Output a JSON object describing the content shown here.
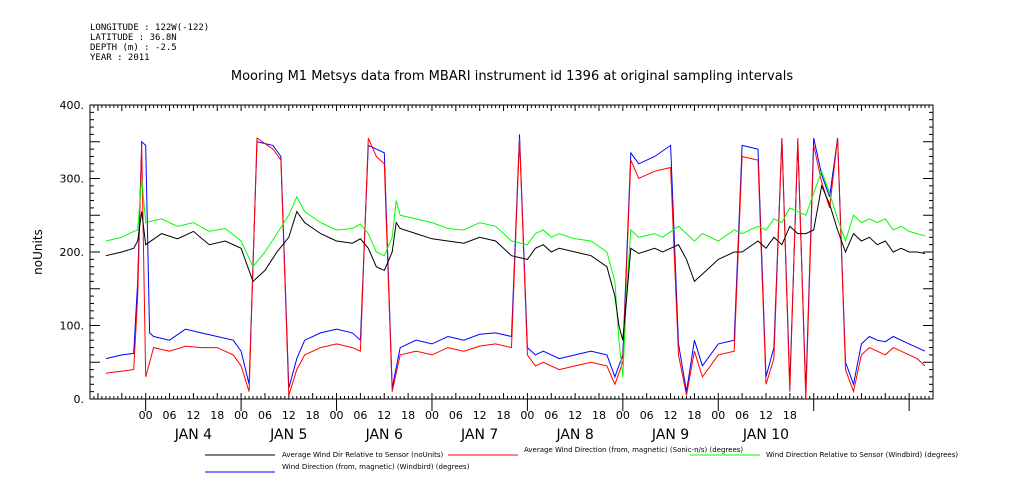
{
  "metadata": {
    "longitude": "LONGITUDE : 122W(-122)",
    "latitude": "LATITUDE : 36.8N",
    "depth": "DEPTH (m) : -2.5",
    "year": "YEAR : 2011"
  },
  "chart_data": {
    "type": "line",
    "title": "Mooring M1 Metsys data from MBARI instrument id 1396 at original sampling intervals",
    "ylabel": "noUnits",
    "ylim": [
      0,
      400
    ],
    "yticks": [
      "0.",
      "100.",
      "200.",
      "300.",
      "400."
    ],
    "xlim_hours": [
      -14,
      198
    ],
    "hour_ticks": [
      "00",
      "06",
      "12",
      "18",
      "00",
      "06",
      "12",
      "18",
      "00",
      "06",
      "12",
      "18",
      "00",
      "06",
      "12",
      "18",
      "00",
      "06",
      "12",
      "18",
      "00",
      "06",
      "12",
      "18",
      "00",
      "06",
      "12",
      "18"
    ],
    "day_labels": [
      "JAN  4",
      "JAN  5",
      "JAN  6",
      "JAN  7",
      "JAN  8",
      "JAN  9",
      "JAN 10"
    ],
    "series": [
      {
        "name": "Average Wind Dir Relative to Sensor (noUnits)",
        "color": "#000000",
        "points": [
          [
            -10,
            195
          ],
          [
            -6,
            200
          ],
          [
            -3,
            205
          ],
          [
            -2,
            215
          ],
          [
            -1,
            255
          ],
          [
            0,
            210
          ],
          [
            4,
            225
          ],
          [
            8,
            218
          ],
          [
            12,
            228
          ],
          [
            16,
            210
          ],
          [
            20,
            215
          ],
          [
            24,
            205
          ],
          [
            27,
            160
          ],
          [
            30,
            175
          ],
          [
            33,
            200
          ],
          [
            36,
            220
          ],
          [
            38,
            255
          ],
          [
            40,
            240
          ],
          [
            44,
            225
          ],
          [
            48,
            215
          ],
          [
            52,
            212
          ],
          [
            54,
            218
          ],
          [
            56,
            205
          ],
          [
            58,
            180
          ],
          [
            60,
            175
          ],
          [
            62,
            200
          ],
          [
            63,
            240
          ],
          [
            64,
            232
          ],
          [
            68,
            225
          ],
          [
            72,
            218
          ],
          [
            76,
            215
          ],
          [
            80,
            212
          ],
          [
            84,
            220
          ],
          [
            88,
            215
          ],
          [
            90,
            205
          ],
          [
            92,
            195
          ],
          [
            96,
            190
          ],
          [
            98,
            205
          ],
          [
            100,
            210
          ],
          [
            102,
            200
          ],
          [
            104,
            205
          ],
          [
            108,
            200
          ],
          [
            112,
            195
          ],
          [
            116,
            180
          ],
          [
            118,
            140
          ],
          [
            119,
            100
          ],
          [
            120,
            80
          ],
          [
            121,
            140
          ],
          [
            122,
            205
          ],
          [
            124,
            198
          ],
          [
            128,
            205
          ],
          [
            130,
            200
          ],
          [
            134,
            210
          ],
          [
            136,
            190
          ],
          [
            138,
            160
          ],
          [
            140,
            170
          ],
          [
            144,
            190
          ],
          [
            148,
            200
          ],
          [
            150,
            200
          ],
          [
            154,
            215
          ],
          [
            156,
            205
          ],
          [
            158,
            220
          ],
          [
            160,
            210
          ],
          [
            162,
            235
          ],
          [
            164,
            225
          ],
          [
            166,
            225
          ],
          [
            168,
            230
          ],
          [
            170,
            290
          ],
          [
            172,
            265
          ],
          [
            174,
            230
          ],
          [
            176,
            200
          ],
          [
            178,
            225
          ],
          [
            180,
            215
          ],
          [
            182,
            220
          ],
          [
            184,
            210
          ],
          [
            186,
            215
          ],
          [
            188,
            200
          ],
          [
            190,
            205
          ],
          [
            192,
            200
          ],
          [
            194,
            200
          ],
          [
            196,
            198
          ]
        ]
      },
      {
        "name": "Average Wind Direction (from, magnetic) (Sonic-n/s) (degrees)",
        "color": "#ff0000",
        "points": [
          [
            -10,
            35
          ],
          [
            -6,
            38
          ],
          [
            -3,
            40
          ],
          [
            -2,
            140
          ],
          [
            -1,
            345
          ],
          [
            0,
            30
          ],
          [
            2,
            70
          ],
          [
            6,
            65
          ],
          [
            10,
            72
          ],
          [
            14,
            70
          ],
          [
            18,
            70
          ],
          [
            22,
            60
          ],
          [
            24,
            45
          ],
          [
            26,
            10
          ],
          [
            28,
            355
          ],
          [
            32,
            340
          ],
          [
            34,
            325
          ],
          [
            36,
            5
          ],
          [
            38,
            40
          ],
          [
            40,
            60
          ],
          [
            44,
            70
          ],
          [
            48,
            75
          ],
          [
            52,
            70
          ],
          [
            54,
            65
          ],
          [
            56,
            355
          ],
          [
            58,
            330
          ],
          [
            60,
            320
          ],
          [
            62,
            10
          ],
          [
            64,
            60
          ],
          [
            68,
            65
          ],
          [
            72,
            60
          ],
          [
            76,
            70
          ],
          [
            80,
            65
          ],
          [
            84,
            72
          ],
          [
            88,
            75
          ],
          [
            92,
            70
          ],
          [
            94,
            355
          ],
          [
            96,
            60
          ],
          [
            98,
            45
          ],
          [
            100,
            50
          ],
          [
            104,
            40
          ],
          [
            108,
            45
          ],
          [
            112,
            50
          ],
          [
            116,
            45
          ],
          [
            118,
            20
          ],
          [
            120,
            50
          ],
          [
            122,
            325
          ],
          [
            124,
            300
          ],
          [
            128,
            310
          ],
          [
            132,
            315
          ],
          [
            134,
            60
          ],
          [
            136,
            5
          ],
          [
            138,
            65
          ],
          [
            140,
            30
          ],
          [
            144,
            60
          ],
          [
            148,
            65
          ],
          [
            150,
            330
          ],
          [
            154,
            325
          ],
          [
            156,
            20
          ],
          [
            158,
            55
          ],
          [
            160,
            355
          ],
          [
            162,
            10
          ],
          [
            164,
            355
          ],
          [
            166,
            0
          ],
          [
            168,
            345
          ],
          [
            170,
            295
          ],
          [
            172,
            260
          ],
          [
            174,
            355
          ],
          [
            176,
            40
          ],
          [
            178,
            10
          ],
          [
            180,
            60
          ],
          [
            182,
            70
          ],
          [
            184,
            65
          ],
          [
            186,
            60
          ],
          [
            188,
            70
          ],
          [
            190,
            65
          ],
          [
            192,
            60
          ],
          [
            194,
            55
          ],
          [
            196,
            45
          ]
        ]
      },
      {
        "name": "Wind Direction Relative to Sensor (Windbird) (degrees)",
        "color": "#00ff00",
        "points": [
          [
            -10,
            215
          ],
          [
            -6,
            220
          ],
          [
            -3,
            228
          ],
          [
            -2,
            230
          ],
          [
            -1,
            300
          ],
          [
            0,
            240
          ],
          [
            4,
            245
          ],
          [
            8,
            235
          ],
          [
            12,
            240
          ],
          [
            16,
            228
          ],
          [
            20,
            232
          ],
          [
            24,
            215
          ],
          [
            27,
            180
          ],
          [
            30,
            200
          ],
          [
            33,
            225
          ],
          [
            36,
            250
          ],
          [
            38,
            275
          ],
          [
            40,
            255
          ],
          [
            44,
            240
          ],
          [
            48,
            230
          ],
          [
            52,
            232
          ],
          [
            54,
            238
          ],
          [
            56,
            225
          ],
          [
            58,
            200
          ],
          [
            60,
            195
          ],
          [
            62,
            220
          ],
          [
            63,
            270
          ],
          [
            64,
            250
          ],
          [
            68,
            245
          ],
          [
            72,
            240
          ],
          [
            76,
            232
          ],
          [
            80,
            230
          ],
          [
            84,
            240
          ],
          [
            88,
            235
          ],
          [
            90,
            225
          ],
          [
            92,
            215
          ],
          [
            96,
            210
          ],
          [
            98,
            225
          ],
          [
            100,
            230
          ],
          [
            102,
            220
          ],
          [
            104,
            225
          ],
          [
            108,
            218
          ],
          [
            112,
            215
          ],
          [
            116,
            200
          ],
          [
            118,
            160
          ],
          [
            119,
            80
          ],
          [
            120,
            30
          ],
          [
            121,
            150
          ],
          [
            122,
            230
          ],
          [
            124,
            220
          ],
          [
            128,
            225
          ],
          [
            130,
            220
          ],
          [
            134,
            235
          ],
          [
            136,
            225
          ],
          [
            138,
            215
          ],
          [
            140,
            225
          ],
          [
            144,
            215
          ],
          [
            148,
            230
          ],
          [
            150,
            225
          ],
          [
            154,
            235
          ],
          [
            156,
            230
          ],
          [
            158,
            245
          ],
          [
            160,
            240
          ],
          [
            162,
            260
          ],
          [
            164,
            255
          ],
          [
            166,
            250
          ],
          [
            168,
            280
          ],
          [
            170,
            310
          ],
          [
            172,
            280
          ],
          [
            174,
            245
          ],
          [
            176,
            215
          ],
          [
            178,
            250
          ],
          [
            180,
            240
          ],
          [
            182,
            245
          ],
          [
            184,
            240
          ],
          [
            186,
            245
          ],
          [
            188,
            230
          ],
          [
            190,
            235
          ],
          [
            192,
            228
          ],
          [
            194,
            225
          ],
          [
            196,
            222
          ]
        ]
      },
      {
        "name": "Wind Direction (from, magnetic) (Windbird) (degrees)",
        "color": "#0000ff",
        "points": [
          [
            -10,
            55
          ],
          [
            -6,
            60
          ],
          [
            -3,
            62
          ],
          [
            -2,
            160
          ],
          [
            -1,
            350
          ],
          [
            0,
            345
          ],
          [
            1,
            90
          ],
          [
            2,
            85
          ],
          [
            6,
            80
          ],
          [
            10,
            95
          ],
          [
            14,
            90
          ],
          [
            18,
            85
          ],
          [
            22,
            80
          ],
          [
            24,
            65
          ],
          [
            26,
            20
          ],
          [
            28,
            350
          ],
          [
            32,
            345
          ],
          [
            34,
            330
          ],
          [
            36,
            15
          ],
          [
            38,
            55
          ],
          [
            40,
            80
          ],
          [
            44,
            90
          ],
          [
            48,
            95
          ],
          [
            52,
            90
          ],
          [
            54,
            80
          ],
          [
            56,
            345
          ],
          [
            58,
            340
          ],
          [
            60,
            335
          ],
          [
            62,
            15
          ],
          [
            64,
            70
          ],
          [
            68,
            80
          ],
          [
            72,
            75
          ],
          [
            76,
            85
          ],
          [
            80,
            80
          ],
          [
            84,
            88
          ],
          [
            88,
            90
          ],
          [
            92,
            85
          ],
          [
            94,
            360
          ],
          [
            96,
            70
          ],
          [
            98,
            60
          ],
          [
            100,
            65
          ],
          [
            104,
            55
          ],
          [
            108,
            60
          ],
          [
            112,
            65
          ],
          [
            116,
            60
          ],
          [
            118,
            30
          ],
          [
            120,
            60
          ],
          [
            122,
            335
          ],
          [
            124,
            320
          ],
          [
            128,
            330
          ],
          [
            132,
            345
          ],
          [
            134,
            75
          ],
          [
            136,
            10
          ],
          [
            138,
            80
          ],
          [
            140,
            45
          ],
          [
            144,
            75
          ],
          [
            148,
            80
          ],
          [
            150,
            345
          ],
          [
            154,
            340
          ],
          [
            156,
            30
          ],
          [
            158,
            70
          ],
          [
            160,
            355
          ],
          [
            162,
            20
          ],
          [
            164,
            350
          ],
          [
            166,
            10
          ],
          [
            168,
            355
          ],
          [
            170,
            305
          ],
          [
            172,
            275
          ],
          [
            174,
            355
          ],
          [
            176,
            50
          ],
          [
            178,
            20
          ],
          [
            180,
            75
          ],
          [
            182,
            85
          ],
          [
            184,
            80
          ],
          [
            186,
            78
          ],
          [
            188,
            85
          ],
          [
            190,
            80
          ],
          [
            192,
            75
          ],
          [
            194,
            70
          ],
          [
            196,
            65
          ]
        ]
      }
    ]
  }
}
